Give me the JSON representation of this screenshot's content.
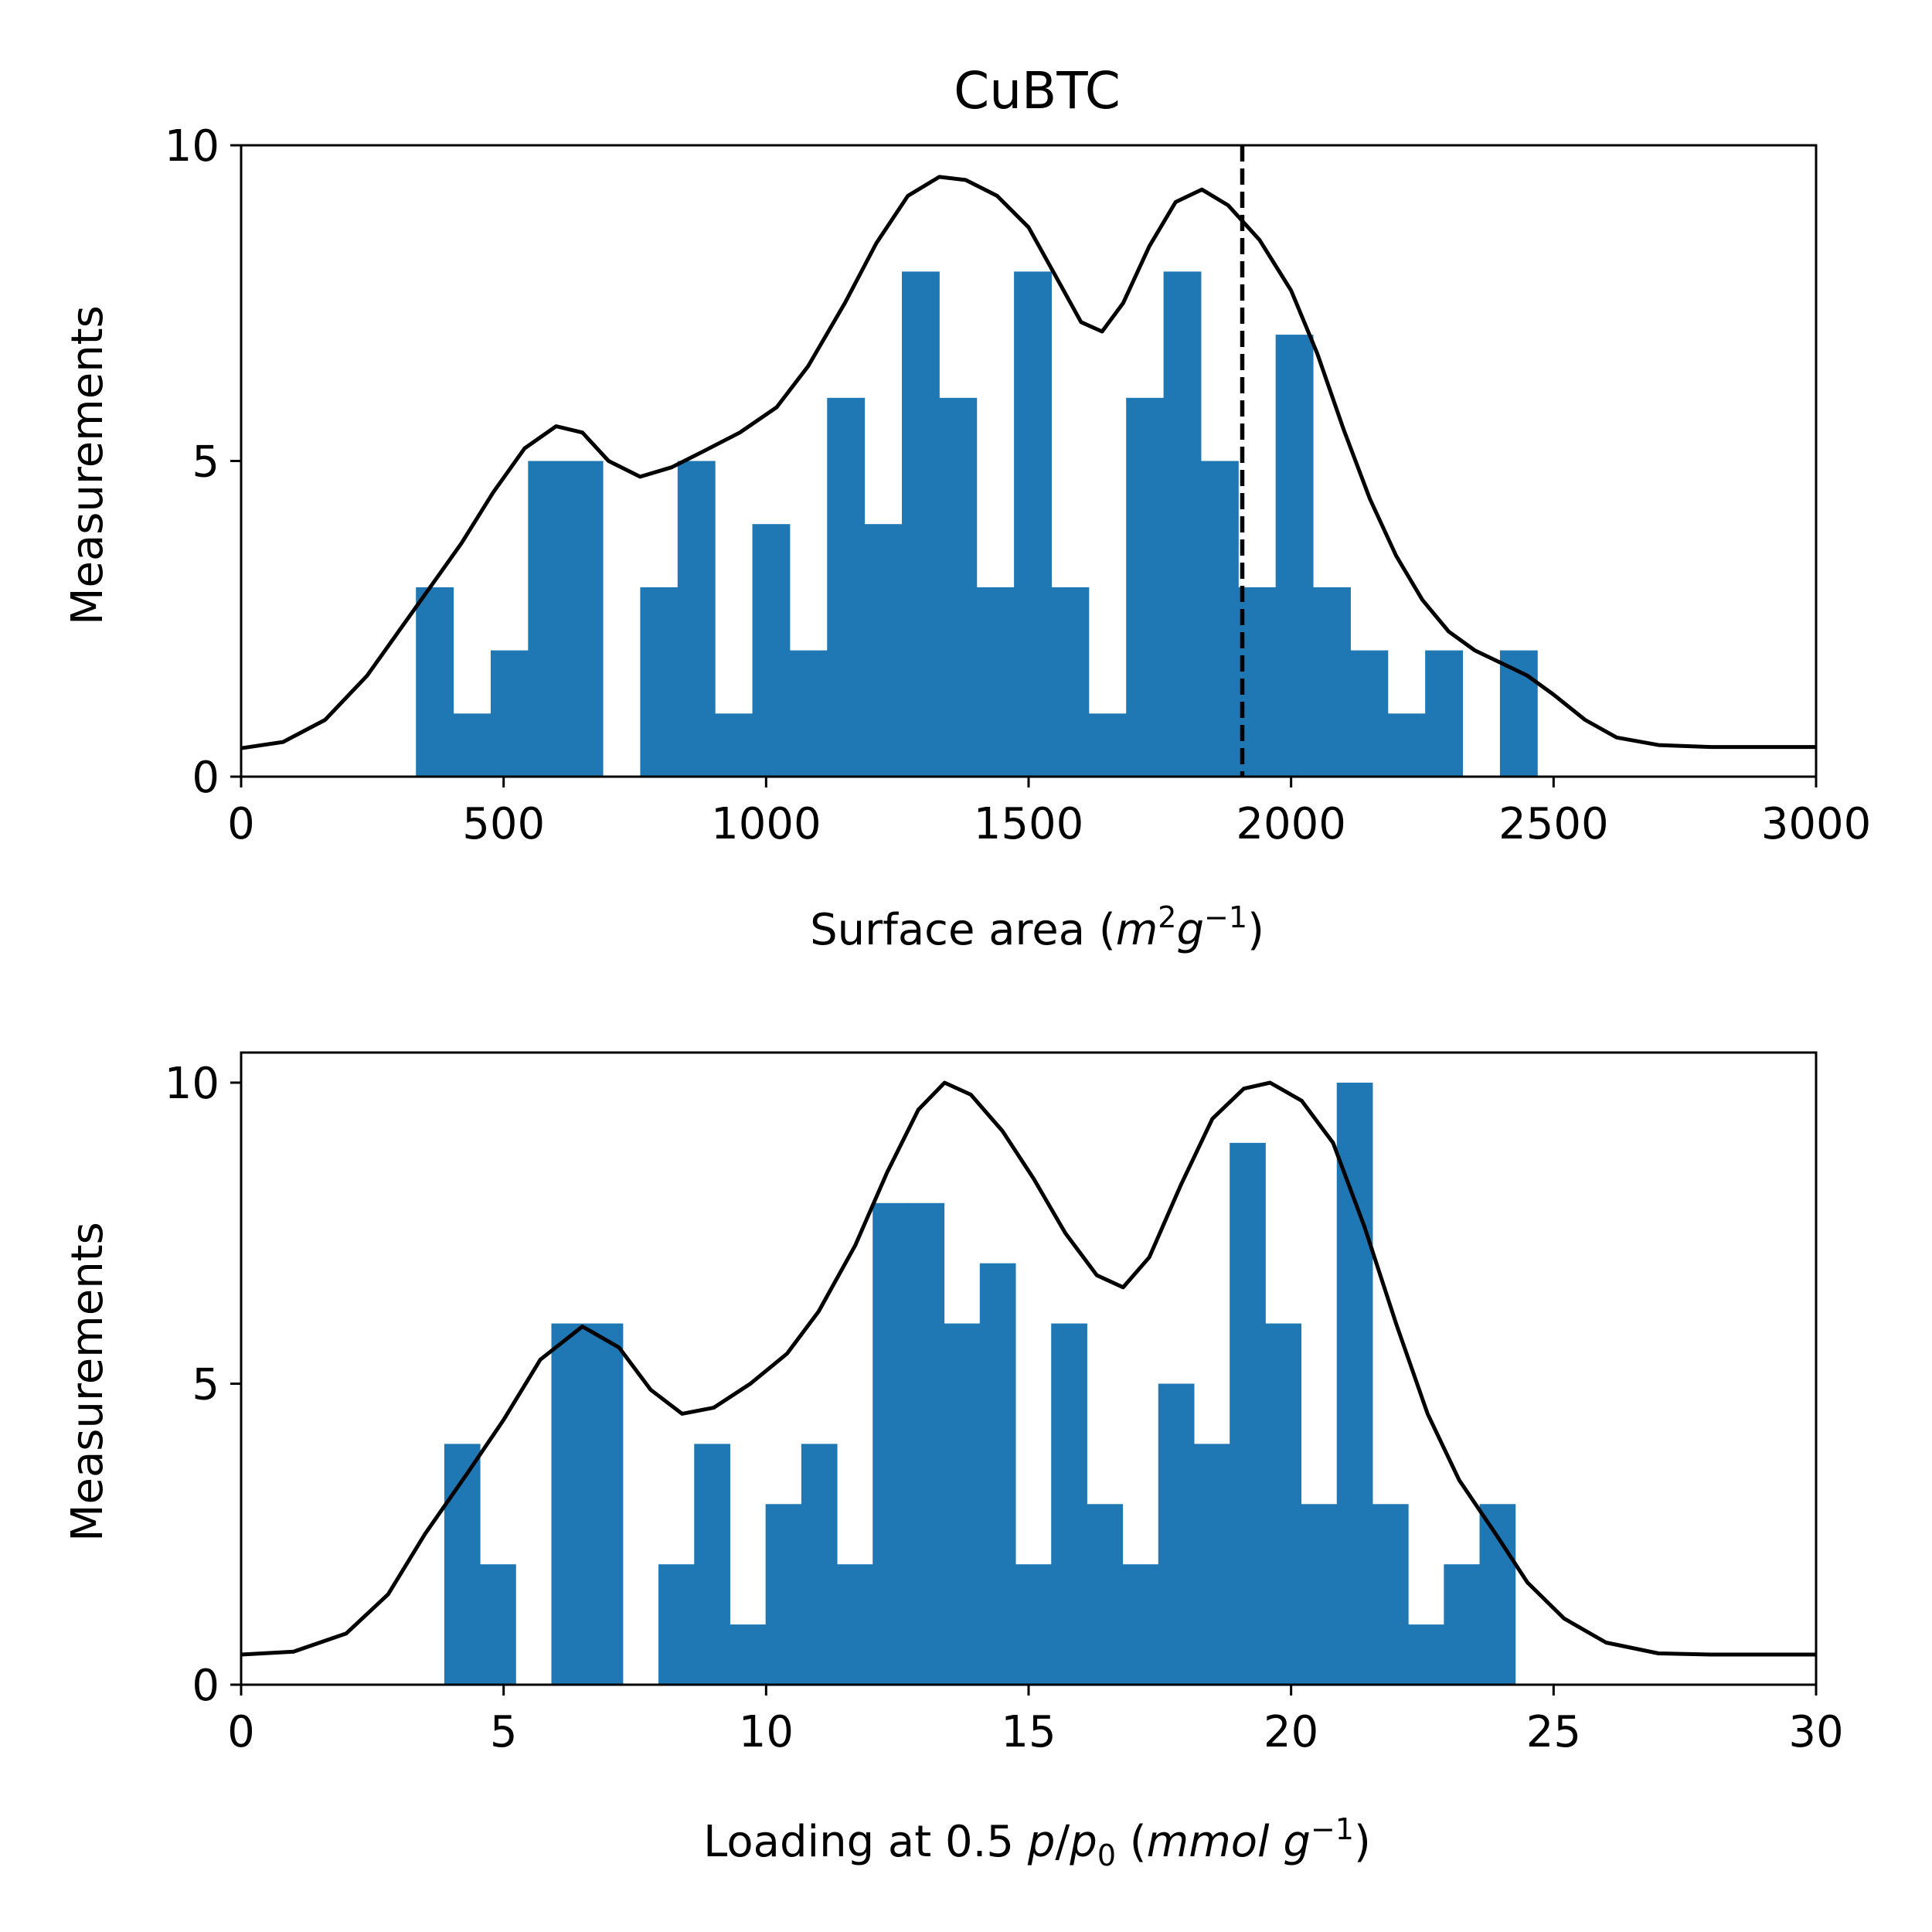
{
  "chart_data": [
    {
      "type": "bar",
      "title": "CuBTC",
      "xlabel": "Surface area ($m^2 g^{-1}$)",
      "ylabel": "Measurements",
      "xlim": [
        0,
        3000
      ],
      "ylim": [
        0,
        10
      ],
      "x_ticks": [
        "0",
        "500",
        "1000",
        "1500",
        "2000",
        "2500",
        "3000"
      ],
      "y_ticks": [
        "0",
        "5",
        "10"
      ],
      "bin_start": 333,
      "bin_width": 71.2,
      "values": [
        3,
        1,
        2,
        5,
        5,
        0,
        3,
        5,
        1,
        4,
        2,
        6,
        4,
        8,
        6,
        3,
        8,
        3,
        1,
        6,
        8,
        5,
        3,
        7,
        3,
        2,
        1,
        2,
        0,
        2
      ],
      "colors": {
        "bars": "#1f77b4",
        "curve": "#000000",
        "reference": "#000000"
      },
      "reference_line": {
        "x": 1907,
        "style": "dashed"
      },
      "kde_curve": [
        [
          0,
          0.45
        ],
        [
          80,
          0.55
        ],
        [
          160,
          0.9
        ],
        [
          240,
          1.6
        ],
        [
          300,
          2.3
        ],
        [
          360,
          3.0
        ],
        [
          420,
          3.7
        ],
        [
          480,
          4.5
        ],
        [
          540,
          5.2
        ],
        [
          600,
          5.55
        ],
        [
          650,
          5.45
        ],
        [
          700,
          5.0
        ],
        [
          760,
          4.75
        ],
        [
          820,
          4.9
        ],
        [
          880,
          5.15
        ],
        [
          950,
          5.45
        ],
        [
          1020,
          5.85
        ],
        [
          1080,
          6.5
        ],
        [
          1150,
          7.5
        ],
        [
          1210,
          8.45
        ],
        [
          1270,
          9.2
        ],
        [
          1330,
          9.5
        ],
        [
          1380,
          9.45
        ],
        [
          1440,
          9.2
        ],
        [
          1500,
          8.7
        ],
        [
          1560,
          7.8
        ],
        [
          1600,
          7.2
        ],
        [
          1640,
          7.05
        ],
        [
          1680,
          7.5
        ],
        [
          1730,
          8.4
        ],
        [
          1780,
          9.1
        ],
        [
          1830,
          9.3
        ],
        [
          1880,
          9.05
        ],
        [
          1940,
          8.5
        ],
        [
          2000,
          7.7
        ],
        [
          2050,
          6.7
        ],
        [
          2100,
          5.5
        ],
        [
          2150,
          4.4
        ],
        [
          2200,
          3.5
        ],
        [
          2250,
          2.8
        ],
        [
          2300,
          2.3
        ],
        [
          2350,
          2.0
        ],
        [
          2400,
          1.8
        ],
        [
          2450,
          1.6
        ],
        [
          2500,
          1.3
        ],
        [
          2560,
          0.9
        ],
        [
          2620,
          0.62
        ],
        [
          2700,
          0.5
        ],
        [
          2800,
          0.47
        ],
        [
          3000,
          0.47
        ]
      ]
    },
    {
      "type": "bar",
      "title": "",
      "xlabel": "Loading at 0.5 $p/p_0$ ($mmol\\ g^{-1}$)",
      "ylabel": "Measurements",
      "xlim": [
        0,
        30
      ],
      "ylim": [
        0,
        10.5
      ],
      "x_ticks": [
        "0",
        "5",
        "10",
        "15",
        "20",
        "25",
        "30"
      ],
      "y_ticks": [
        "0",
        "5",
        "10"
      ],
      "bin_start": 3.87,
      "bin_width": 0.68,
      "values": [
        4,
        2,
        0,
        6,
        6,
        0,
        2,
        4,
        1,
        3,
        4,
        2,
        8,
        8,
        6,
        7,
        2,
        6,
        3,
        2,
        5,
        4,
        9,
        6,
        3,
        10,
        3,
        1,
        2,
        3
      ],
      "colors": {
        "bars": "#1f77b4",
        "curve": "#000000"
      },
      "kde_curve": [
        [
          0,
          0.5
        ],
        [
          1,
          0.55
        ],
        [
          2,
          0.85
        ],
        [
          2.8,
          1.5
        ],
        [
          3.5,
          2.5
        ],
        [
          4.3,
          3.5
        ],
        [
          5,
          4.4
        ],
        [
          5.7,
          5.4
        ],
        [
          6.5,
          5.95
        ],
        [
          7.2,
          5.6
        ],
        [
          7.8,
          4.9
        ],
        [
          8.4,
          4.5
        ],
        [
          9,
          4.6
        ],
        [
          9.7,
          5.0
        ],
        [
          10.4,
          5.5
        ],
        [
          11,
          6.2
        ],
        [
          11.7,
          7.3
        ],
        [
          12.3,
          8.5
        ],
        [
          12.9,
          9.55
        ],
        [
          13.4,
          10.0
        ],
        [
          13.9,
          9.8
        ],
        [
          14.5,
          9.2
        ],
        [
          15.1,
          8.4
        ],
        [
          15.7,
          7.5
        ],
        [
          16.3,
          6.8
        ],
        [
          16.8,
          6.6
        ],
        [
          17.3,
          7.1
        ],
        [
          17.9,
          8.3
        ],
        [
          18.5,
          9.4
        ],
        [
          19.1,
          9.9
        ],
        [
          19.6,
          10.0
        ],
        [
          20.2,
          9.7
        ],
        [
          20.8,
          9.0
        ],
        [
          21.4,
          7.6
        ],
        [
          22.0,
          6.0
        ],
        [
          22.6,
          4.5
        ],
        [
          23.2,
          3.4
        ],
        [
          23.9,
          2.5
        ],
        [
          24.5,
          1.7
        ],
        [
          25.2,
          1.1
        ],
        [
          26,
          0.7
        ],
        [
          27,
          0.52
        ],
        [
          28,
          0.5
        ],
        [
          30,
          0.5
        ]
      ]
    }
  ]
}
